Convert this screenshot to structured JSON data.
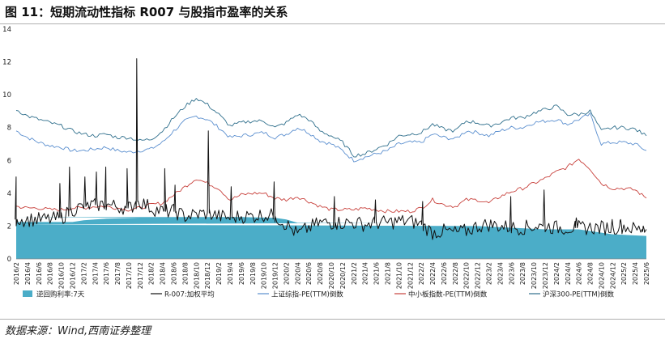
{
  "figure": {
    "title": "图 11：短期流动性指标 R007 与股指市盈率的关系",
    "source": "数据来源：Wind,西南证券整理"
  },
  "chart_data": {
    "type": "line",
    "ylim": [
      0,
      14
    ],
    "y_ticks": [
      "0",
      "2",
      "4",
      "6",
      "8",
      "10",
      "12",
      "14"
    ],
    "x_tick_labels": [
      "2016/2",
      "2016/4",
      "2016/6",
      "2016/8",
      "2016/10",
      "2016/12",
      "2017/2",
      "2017/4",
      "2017/6",
      "2017/8",
      "2017/10",
      "2017/12",
      "2018/2",
      "2018/4",
      "2018/6",
      "2018/8",
      "2018/10",
      "2018/12",
      "2019/2",
      "2019/4",
      "2019/6",
      "2019/8",
      "2019/10",
      "2019/12",
      "2020/2",
      "2020/4",
      "2020/6",
      "2020/8",
      "2020/10",
      "2020/12",
      "2021/2",
      "2021/4",
      "2021/6",
      "2021/8",
      "2021/10",
      "2021/12",
      "2022/2",
      "2022/4",
      "2022/6",
      "2022/8",
      "2022/10",
      "2022/12",
      "2023/2",
      "2023/4",
      "2023/6",
      "2023/8",
      "2023/10",
      "2023/12",
      "2024/2",
      "2024/4",
      "2024/6",
      "2024/8",
      "2024/10",
      "2024/12",
      "2025/2",
      "2025/4",
      "2025/6"
    ],
    "series": [
      {
        "name": "逆回购利率:7天",
        "type": "area",
        "color": "#4badc8",
        "x": [
          "2016/2",
          "2016/8",
          "2016/12",
          "2017/2",
          "2017/6",
          "2017/12",
          "2018/3",
          "2018/6",
          "2018/12",
          "2019/6",
          "2019/12",
          "2020/2",
          "2020/4",
          "2020/12",
          "2021/6",
          "2021/12",
          "2022/1",
          "2022/7",
          "2022/12",
          "2023/6",
          "2023/12",
          "2024/6",
          "2024/12",
          "2025/6"
        ],
        "values": [
          2.25,
          2.25,
          2.25,
          2.35,
          2.45,
          2.5,
          2.55,
          2.55,
          2.55,
          2.55,
          2.5,
          2.4,
          2.2,
          2.2,
          2.2,
          2.2,
          2.1,
          2.1,
          2.0,
          1.9,
          1.8,
          1.8,
          1.5,
          1.4
        ]
      },
      {
        "name": "R-007:加权平均",
        "type": "line",
        "color": "#111111",
        "x": [
          "2016/2",
          "2016/4",
          "2016/6",
          "2016/8",
          "2016/10",
          "2016/12",
          "2017/2",
          "2017/4",
          "2017/6",
          "2017/8",
          "2017/10",
          "2017/12",
          "2018/2",
          "2018/4",
          "2018/6",
          "2018/8",
          "2018/10",
          "2018/12",
          "2019/2",
          "2019/4",
          "2019/6",
          "2019/8",
          "2019/10",
          "2019/12",
          "2020/2",
          "2020/4",
          "2020/6",
          "2020/8",
          "2020/10",
          "2020/12",
          "2021/2",
          "2021/4",
          "2021/6",
          "2021/8",
          "2021/10",
          "2021/12",
          "2022/2",
          "2022/4",
          "2022/6",
          "2022/8",
          "2022/10",
          "2022/12",
          "2023/2",
          "2023/4",
          "2023/6",
          "2023/8",
          "2023/10",
          "2023/12",
          "2024/2",
          "2024/4",
          "2024/6",
          "2024/8",
          "2024/10",
          "2024/12",
          "2025/2",
          "2025/4",
          "2025/6"
        ],
        "values": [
          2.4,
          2.4,
          2.4,
          2.4,
          2.5,
          3.0,
          3.2,
          3.3,
          3.3,
          3.2,
          3.1,
          3.5,
          3.1,
          2.9,
          2.9,
          2.6,
          2.7,
          2.8,
          2.6,
          2.5,
          2.6,
          2.6,
          2.7,
          2.6,
          2.1,
          1.5,
          1.9,
          2.2,
          2.2,
          2.2,
          2.2,
          2.1,
          2.2,
          2.2,
          2.3,
          2.3,
          2.1,
          1.6,
          1.7,
          1.6,
          1.7,
          2.0,
          2.1,
          2.0,
          1.9,
          1.9,
          2.0,
          2.0,
          1.9,
          1.9,
          1.9,
          1.9,
          1.9,
          1.9,
          2.0,
          1.8,
          1.8
        ],
        "spikes": [
          {
            "x": "2016/2",
            "value": 5.0
          },
          {
            "x": "2016/10",
            "value": 4.6
          },
          {
            "x": "2016/12",
            "value": 5.6
          },
          {
            "x": "2017/2",
            "value": 5.0
          },
          {
            "x": "2017/4",
            "value": 5.3
          },
          {
            "x": "2017/6",
            "value": 5.6
          },
          {
            "x": "2017/10",
            "value": 5.5
          },
          {
            "x": "2017/12",
            "value": 12.2
          },
          {
            "x": "2018/4",
            "value": 5.5
          },
          {
            "x": "2018/6",
            "value": 4.5
          },
          {
            "x": "2018/12",
            "value": 7.8
          },
          {
            "x": "2019/4",
            "value": 4.4
          },
          {
            "x": "2019/12",
            "value": 4.7
          },
          {
            "x": "2020/10",
            "value": 3.8
          },
          {
            "x": "2021/6",
            "value": 3.6
          },
          {
            "x": "2022/2",
            "value": 3.5
          },
          {
            "x": "2023/6",
            "value": 3.8
          },
          {
            "x": "2023/12",
            "value": 4.2
          },
          {
            "x": "2024/6",
            "value": 2.5
          },
          {
            "x": "2024/12",
            "value": 2.4
          },
          {
            "x": "2025/2",
            "value": 2.4
          },
          {
            "x": "2025/6",
            "value": 2.0
          }
        ]
      },
      {
        "name": "上证综指-PE(TTM)倒数",
        "type": "line",
        "color": "#5b8fcf",
        "x": [
          "2016/2",
          "2016/4",
          "2016/6",
          "2016/8",
          "2016/10",
          "2016/12",
          "2017/2",
          "2017/4",
          "2017/6",
          "2017/8",
          "2017/10",
          "2017/12",
          "2018/2",
          "2018/4",
          "2018/6",
          "2018/8",
          "2018/10",
          "2018/12",
          "2019/2",
          "2019/4",
          "2019/6",
          "2019/8",
          "2019/10",
          "2019/12",
          "2020/2",
          "2020/4",
          "2020/6",
          "2020/8",
          "2020/10",
          "2020/12",
          "2021/2",
          "2021/4",
          "2021/6",
          "2021/8",
          "2021/10",
          "2021/12",
          "2022/2",
          "2022/4",
          "2022/6",
          "2022/8",
          "2022/10",
          "2022/12",
          "2023/2",
          "2023/4",
          "2023/6",
          "2023/8",
          "2023/10",
          "2023/12",
          "2024/2",
          "2024/4",
          "2024/6",
          "2024/8",
          "2024/10",
          "2024/12",
          "2025/2",
          "2025/4",
          "2025/6"
        ],
        "values": [
          7.8,
          7.4,
          7.1,
          6.9,
          6.8,
          6.6,
          6.6,
          6.7,
          6.8,
          6.6,
          6.5,
          6.6,
          6.7,
          7.1,
          7.8,
          8.4,
          8.7,
          8.5,
          8.0,
          7.4,
          7.5,
          7.6,
          7.7,
          7.4,
          7.6,
          8.0,
          7.7,
          7.2,
          7.0,
          6.6,
          6.0,
          6.2,
          6.4,
          6.6,
          7.0,
          7.1,
          7.1,
          7.6,
          7.4,
          7.3,
          7.8,
          7.7,
          7.5,
          7.8,
          8.0,
          8.0,
          8.3,
          8.4,
          8.5,
          8.2,
          8.5,
          8.8,
          7.0,
          7.1,
          7.1,
          7.0,
          6.6
        ]
      },
      {
        "name": "中小板指数-PE(TTM)倒数",
        "type": "line",
        "color": "#c8413c",
        "x": [
          "2016/2",
          "2016/4",
          "2016/6",
          "2016/8",
          "2016/10",
          "2016/12",
          "2017/2",
          "2017/4",
          "2017/6",
          "2017/8",
          "2017/10",
          "2017/12",
          "2018/2",
          "2018/4",
          "2018/6",
          "2018/8",
          "2018/10",
          "2018/12",
          "2019/2",
          "2019/4",
          "2019/6",
          "2019/8",
          "2019/10",
          "2019/12",
          "2020/2",
          "2020/4",
          "2020/6",
          "2020/8",
          "2020/10",
          "2020/12",
          "2021/2",
          "2021/4",
          "2021/6",
          "2021/8",
          "2021/10",
          "2021/12",
          "2022/2",
          "2022/4",
          "2022/6",
          "2022/8",
          "2022/10",
          "2022/12",
          "2023/2",
          "2023/4",
          "2023/6",
          "2023/8",
          "2023/10",
          "2023/12",
          "2024/2",
          "2024/4",
          "2024/6",
          "2024/8",
          "2024/10",
          "2024/12",
          "2025/2",
          "2025/4",
          "2025/6"
        ],
        "values": [
          3.2,
          3.1,
          3.1,
          3.0,
          3.0,
          3.1,
          3.1,
          3.2,
          3.2,
          3.1,
          3.0,
          3.1,
          3.3,
          3.4,
          3.9,
          4.4,
          4.9,
          4.6,
          4.3,
          3.6,
          3.9,
          4.0,
          4.0,
          3.7,
          3.6,
          3.8,
          3.5,
          3.2,
          3.0,
          3.0,
          3.0,
          3.1,
          3.0,
          2.9,
          2.9,
          2.9,
          3.1,
          3.6,
          3.3,
          3.2,
          3.6,
          3.6,
          3.4,
          3.8,
          4.1,
          4.3,
          4.6,
          4.9,
          5.3,
          5.6,
          6.1,
          5.5,
          4.6,
          4.3,
          4.3,
          4.2,
          3.7
        ]
      },
      {
        "name": "沪深300-PE(TTM)倒数",
        "type": "line",
        "color": "#2f6f8c",
        "x": [
          "2016/2",
          "2016/4",
          "2016/6",
          "2016/8",
          "2016/10",
          "2016/12",
          "2017/2",
          "2017/4",
          "2017/6",
          "2017/8",
          "2017/10",
          "2017/12",
          "2018/2",
          "2018/4",
          "2018/6",
          "2018/8",
          "2018/10",
          "2018/12",
          "2019/2",
          "2019/4",
          "2019/6",
          "2019/8",
          "2019/10",
          "2019/12",
          "2020/2",
          "2020/4",
          "2020/6",
          "2020/8",
          "2020/10",
          "2020/12",
          "2021/2",
          "2021/4",
          "2021/6",
          "2021/8",
          "2021/10",
          "2021/12",
          "2022/2",
          "2022/4",
          "2022/6",
          "2022/8",
          "2022/10",
          "2022/12",
          "2023/2",
          "2023/4",
          "2023/6",
          "2023/8",
          "2023/10",
          "2023/12",
          "2024/2",
          "2024/4",
          "2024/6",
          "2024/8",
          "2024/10",
          "2024/12",
          "2025/2",
          "2025/4",
          "2025/6"
        ],
        "values": [
          9.1,
          8.7,
          8.5,
          8.3,
          8.1,
          7.8,
          7.6,
          7.5,
          7.6,
          7.4,
          7.4,
          7.2,
          7.3,
          7.8,
          8.6,
          9.3,
          9.8,
          9.4,
          8.8,
          8.1,
          8.3,
          8.4,
          8.4,
          8.0,
          8.3,
          8.8,
          8.5,
          7.8,
          7.5,
          7.1,
          6.3,
          6.4,
          6.7,
          7.0,
          7.5,
          7.6,
          7.7,
          8.2,
          7.9,
          7.8,
          8.4,
          8.3,
          8.1,
          8.3,
          8.6,
          8.6,
          8.9,
          9.1,
          9.3,
          8.8,
          8.8,
          9.0,
          7.8,
          8.0,
          8.0,
          7.9,
          7.5
        ]
      }
    ]
  }
}
